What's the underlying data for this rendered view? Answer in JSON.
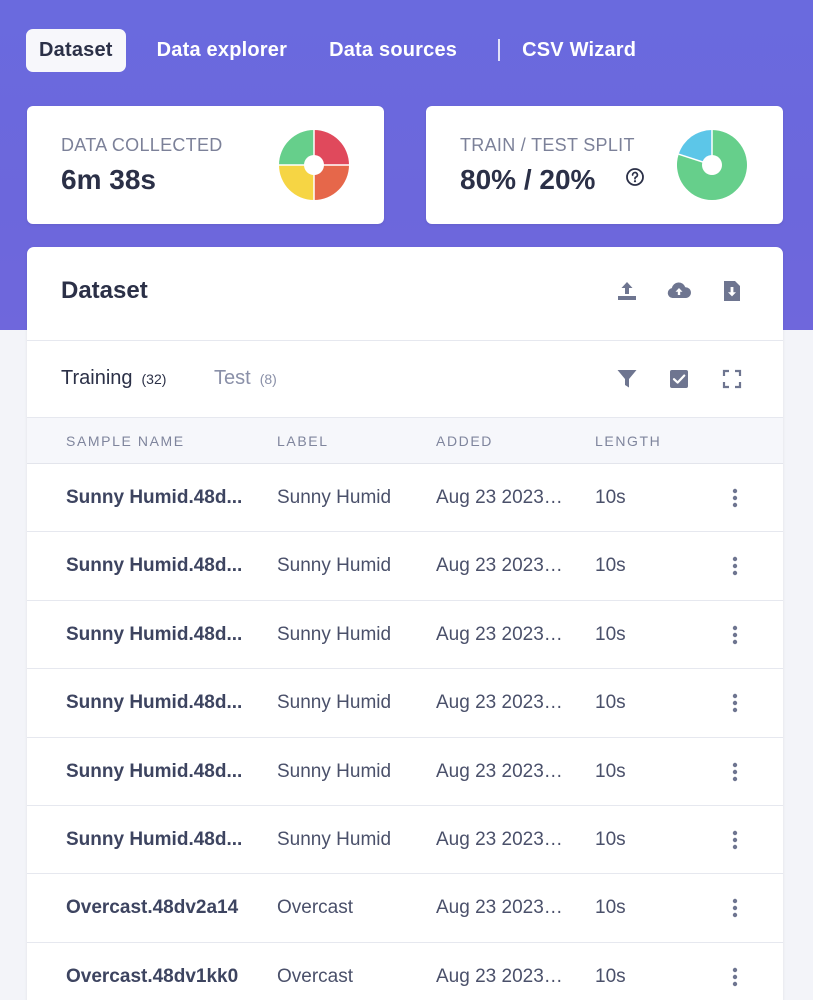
{
  "nav": {
    "tabs": [
      "Dataset",
      "Data explorer",
      "Data sources",
      "CSV Wizard"
    ],
    "active": "Dataset"
  },
  "stats": {
    "collected": {
      "label": "DATA COLLECTED",
      "value": "6m 38s"
    },
    "split": {
      "label": "TRAIN / TEST SPLIT",
      "value": "80% / 20%"
    }
  },
  "colors": {
    "header_bg": "#6b6adc",
    "pie_green": "#66cf8b",
    "pie_red": "#e0495c",
    "pie_orange": "#e6674a",
    "pie_yellow": "#f6d544",
    "pie_blue": "#5cc6e8"
  },
  "dataset": {
    "title": "Dataset",
    "tabs": [
      {
        "name": "Training",
        "count": "(32)"
      },
      {
        "name": "Test",
        "count": "(8)"
      }
    ],
    "columns": [
      "SAMPLE NAME",
      "LABEL",
      "ADDED",
      "LENGTH"
    ],
    "rows": [
      {
        "name": "Sunny Humid.48d...",
        "label": "Sunny Humid",
        "added": "Aug 23 2023, ...",
        "length": "10s"
      },
      {
        "name": "Sunny Humid.48d...",
        "label": "Sunny Humid",
        "added": "Aug 23 2023, ...",
        "length": "10s"
      },
      {
        "name": "Sunny Humid.48d...",
        "label": "Sunny Humid",
        "added": "Aug 23 2023, ...",
        "length": "10s"
      },
      {
        "name": "Sunny Humid.48d...",
        "label": "Sunny Humid",
        "added": "Aug 23 2023, ...",
        "length": "10s"
      },
      {
        "name": "Sunny Humid.48d...",
        "label": "Sunny Humid",
        "added": "Aug 23 2023, ...",
        "length": "10s"
      },
      {
        "name": "Sunny Humid.48d...",
        "label": "Sunny Humid",
        "added": "Aug 23 2023, ...",
        "length": "10s"
      },
      {
        "name": "Overcast.48dv2a14",
        "label": "Overcast",
        "added": "Aug 23 2023, ...",
        "length": "10s"
      },
      {
        "name": "Overcast.48dv1kk0",
        "label": "Overcast",
        "added": "Aug 23 2023, ...",
        "length": "10s"
      }
    ]
  }
}
